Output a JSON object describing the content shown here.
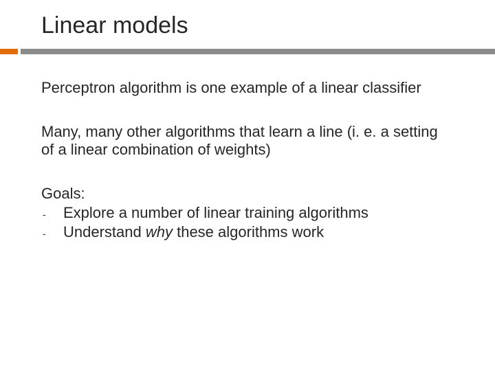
{
  "title": "Linear models",
  "accent_color_left": "#e36c09",
  "accent_color_right": "#8b8b8b",
  "text_color": "#262626",
  "background_color": "#ffffff",
  "title_fontsize": 34,
  "body_fontsize": 22,
  "para1": "Perceptron algorithm is one example of a linear classifier",
  "para2": "Many, many other algorithms that learn a line (i. e. a setting of a linear combination of weights)",
  "goals_heading": "Goals:",
  "goals": [
    {
      "dash": "-",
      "text": "Explore a number of linear training algorithms"
    },
    {
      "dash": "-",
      "prefix": "Understand ",
      "italic": "why",
      "suffix": " these algorithms work"
    }
  ]
}
